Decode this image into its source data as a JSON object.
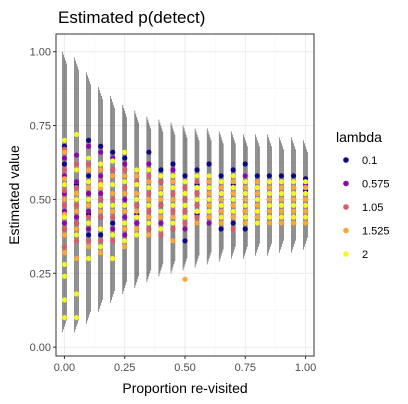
{
  "chart_data": {
    "type": "scatter",
    "title": "Estimated p(detect)",
    "xlabel": "Proportion re-visited",
    "ylabel": "Estimated value",
    "xlim": [
      -0.035,
      1.035
    ],
    "ylim": [
      -0.03,
      1.06
    ],
    "x_ticks": [
      0.0,
      0.25,
      0.5,
      0.75,
      1.0
    ],
    "x_tick_labels": [
      "0.00",
      "0.25",
      "0.50",
      "0.75",
      "1.00"
    ],
    "y_ticks": [
      0.0,
      0.25,
      0.5,
      0.75,
      1.0
    ],
    "y_tick_labels": [
      "0.00",
      "0.25",
      "0.50",
      "0.75",
      "1.00"
    ],
    "grid": true,
    "legend_placement": "right",
    "legend_title": "lambda",
    "series": [
      {
        "name": "0.1",
        "color": "#0d0887"
      },
      {
        "name": "0.575",
        "color": "#8b0aa5"
      },
      {
        "name": "1.05",
        "color": "#db5c68"
      },
      {
        "name": "1.525",
        "color": "#fca636"
      },
      {
        "name": "2",
        "color": "#f0f921"
      }
    ],
    "x": [
      0.0,
      0.05,
      0.1,
      0.15,
      0.2,
      0.25,
      0.3,
      0.35,
      0.4,
      0.45,
      0.5,
      0.55,
      0.6,
      0.65,
      0.7,
      0.75,
      0.8,
      0.85,
      0.9,
      0.95,
      1.0
    ],
    "ci_lower": [
      0.05,
      0.05,
      0.08,
      0.12,
      0.15,
      0.18,
      0.2,
      0.22,
      0.24,
      0.25,
      0.26,
      0.27,
      0.28,
      0.29,
      0.3,
      0.3,
      0.31,
      0.31,
      0.32,
      0.32,
      0.33
    ],
    "ci_upper": [
      1.0,
      0.98,
      0.93,
      0.88,
      0.85,
      0.82,
      0.8,
      0.78,
      0.77,
      0.76,
      0.75,
      0.74,
      0.74,
      0.73,
      0.73,
      0.72,
      0.72,
      0.72,
      0.71,
      0.71,
      0.7
    ],
    "points": [
      [
        [
          0.68,
          0.66,
          0.62,
          0.55,
          0.5,
          0.45,
          0.4
        ],
        [
          0.7,
          0.64,
          0.58,
          0.52,
          0.46,
          0.42
        ],
        [
          0.67,
          0.6,
          0.53,
          0.48,
          0.44,
          0.4,
          0.34
        ],
        [
          0.66,
          0.57,
          0.5,
          0.45,
          0.38,
          0.32
        ],
        [
          0.7,
          0.55,
          0.44,
          0.28,
          0.24,
          0.16,
          0.1
        ]
      ],
      [
        [
          0.6,
          0.55,
          0.5,
          0.46,
          0.42,
          0.38
        ],
        [
          0.65,
          0.56,
          0.5,
          0.44,
          0.4
        ],
        [
          0.62,
          0.54,
          0.48,
          0.42,
          0.36
        ],
        [
          0.6,
          0.52,
          0.46,
          0.4,
          0.3
        ],
        [
          0.72,
          0.6,
          0.5,
          0.38,
          0.18,
          0.1
        ]
      ],
      [
        [
          0.7,
          0.64,
          0.58,
          0.52,
          0.45,
          0.38
        ],
        [
          0.68,
          0.6,
          0.52,
          0.46,
          0.4
        ],
        [
          0.62,
          0.56,
          0.5,
          0.44,
          0.36
        ],
        [
          0.6,
          0.54,
          0.48,
          0.42,
          0.34
        ],
        [
          0.64,
          0.56,
          0.5,
          0.42,
          0.3
        ]
      ],
      [
        [
          0.68,
          0.6,
          0.55,
          0.5,
          0.44,
          0.38
        ],
        [
          0.66,
          0.58,
          0.52,
          0.46,
          0.4
        ],
        [
          0.62,
          0.56,
          0.5,
          0.44,
          0.36
        ],
        [
          0.6,
          0.54,
          0.46,
          0.4,
          0.32
        ],
        [
          0.62,
          0.55,
          0.48,
          0.4,
          0.34
        ]
      ],
      [
        [
          0.66,
          0.6,
          0.55,
          0.48,
          0.42
        ],
        [
          0.64,
          0.58,
          0.52,
          0.46,
          0.4
        ],
        [
          0.6,
          0.55,
          0.5,
          0.44,
          0.36
        ],
        [
          0.58,
          0.52,
          0.46,
          0.38,
          0.3
        ],
        [
          0.63,
          0.55,
          0.48,
          0.38,
          0.3
        ]
      ],
      [
        [
          0.64,
          0.58,
          0.52,
          0.46,
          0.4
        ],
        [
          0.62,
          0.56,
          0.5,
          0.44,
          0.38
        ],
        [
          0.6,
          0.54,
          0.48,
          0.42,
          0.36
        ],
        [
          0.58,
          0.52,
          0.46,
          0.4,
          0.34
        ],
        [
          0.66,
          0.56,
          0.48,
          0.42,
          0.36
        ]
      ],
      [
        [
          0.6,
          0.55,
          0.5,
          0.45,
          0.42
        ],
        [
          0.58,
          0.52,
          0.48,
          0.42
        ],
        [
          0.56,
          0.52,
          0.48,
          0.44,
          0.38
        ],
        [
          0.58,
          0.52,
          0.46,
          0.4
        ],
        [
          0.6,
          0.55,
          0.5,
          0.44,
          0.38
        ]
      ],
      [
        [
          0.66,
          0.6,
          0.54,
          0.48,
          0.42
        ],
        [
          0.62,
          0.56,
          0.5,
          0.44
        ],
        [
          0.58,
          0.52,
          0.46,
          0.4
        ],
        [
          0.56,
          0.5,
          0.44,
          0.38
        ],
        [
          0.6,
          0.54,
          0.48,
          0.42
        ]
      ],
      [
        [
          0.6,
          0.56,
          0.52,
          0.46
        ],
        [
          0.58,
          0.54,
          0.48,
          0.42
        ],
        [
          0.56,
          0.52,
          0.48,
          0.44,
          0.38
        ],
        [
          0.58,
          0.54,
          0.5,
          0.44
        ],
        [
          0.58,
          0.52,
          0.46,
          0.4
        ]
      ],
      [
        [
          0.62,
          0.56,
          0.5,
          0.44,
          0.4
        ],
        [
          0.6,
          0.54,
          0.48,
          0.42
        ],
        [
          0.58,
          0.52,
          0.46,
          0.4
        ],
        [
          0.56,
          0.5,
          0.44,
          0.36
        ],
        [
          0.58,
          0.54,
          0.48,
          0.42
        ]
      ],
      [
        [
          0.58,
          0.52,
          0.48,
          0.44,
          0.36
        ],
        [
          0.56,
          0.5,
          0.46,
          0.4
        ],
        [
          0.54,
          0.5,
          0.46,
          0.42
        ],
        [
          0.56,
          0.52,
          0.48,
          0.44,
          0.23
        ],
        [
          0.56,
          0.52,
          0.48,
          0.44
        ]
      ],
      [
        [
          0.6,
          0.55,
          0.5,
          0.45
        ],
        [
          0.58,
          0.52,
          0.48,
          0.42
        ],
        [
          0.56,
          0.52,
          0.48,
          0.44
        ],
        [
          0.54,
          0.5,
          0.46,
          0.42
        ],
        [
          0.58,
          0.54,
          0.5,
          0.46
        ]
      ],
      [
        [
          0.62,
          0.56,
          0.5,
          0.44
        ],
        [
          0.58,
          0.54,
          0.48,
          0.42
        ],
        [
          0.56,
          0.52,
          0.48,
          0.44
        ],
        [
          0.56,
          0.52,
          0.48,
          0.44
        ],
        [
          0.58,
          0.54,
          0.5,
          0.46
        ]
      ],
      [
        [
          0.58,
          0.54,
          0.5,
          0.46,
          0.4
        ],
        [
          0.56,
          0.52,
          0.48,
          0.44
        ],
        [
          0.56,
          0.52,
          0.48,
          0.44
        ],
        [
          0.54,
          0.5,
          0.46,
          0.42
        ],
        [
          0.56,
          0.52,
          0.48,
          0.44
        ]
      ],
      [
        [
          0.6,
          0.55,
          0.5,
          0.46,
          0.42
        ],
        [
          0.58,
          0.54,
          0.5,
          0.46
        ],
        [
          0.56,
          0.52,
          0.48,
          0.44,
          0.4
        ],
        [
          0.56,
          0.52,
          0.48,
          0.44
        ],
        [
          0.58,
          0.54,
          0.5,
          0.46
        ]
      ],
      [
        [
          0.62,
          0.56,
          0.52,
          0.48,
          0.4
        ],
        [
          0.58,
          0.54,
          0.5,
          0.46
        ],
        [
          0.56,
          0.52,
          0.48,
          0.44
        ],
        [
          0.54,
          0.5,
          0.46,
          0.42
        ],
        [
          0.56,
          0.52,
          0.48,
          0.44
        ]
      ],
      [
        [
          0.58,
          0.54,
          0.5,
          0.46,
          0.42
        ],
        [
          0.56,
          0.52,
          0.48,
          0.44
        ],
        [
          0.54,
          0.5,
          0.46,
          0.42
        ],
        [
          0.56,
          0.52,
          0.48,
          0.44
        ],
        [
          0.54,
          0.5,
          0.46,
          0.42
        ]
      ],
      [
        [
          0.58,
          0.54,
          0.5,
          0.46,
          0.42
        ],
        [
          0.56,
          0.52,
          0.48,
          0.44
        ],
        [
          0.56,
          0.52,
          0.48,
          0.44
        ],
        [
          0.54,
          0.5,
          0.46,
          0.42
        ],
        [
          0.56,
          0.52,
          0.48,
          0.44
        ]
      ],
      [
        [
          0.58,
          0.54,
          0.5,
          0.46,
          0.42
        ],
        [
          0.56,
          0.52,
          0.48,
          0.44
        ],
        [
          0.54,
          0.5,
          0.46,
          0.42
        ],
        [
          0.54,
          0.5,
          0.46,
          0.42
        ],
        [
          0.56,
          0.52,
          0.48,
          0.44
        ]
      ],
      [
        [
          0.58,
          0.54,
          0.5,
          0.46,
          0.42
        ],
        [
          0.56,
          0.52,
          0.48,
          0.44
        ],
        [
          0.54,
          0.5,
          0.46,
          0.42
        ],
        [
          0.54,
          0.5,
          0.46,
          0.42
        ],
        [
          0.56,
          0.52,
          0.48,
          0.44
        ]
      ],
      [
        [
          0.57,
          0.53,
          0.5,
          0.46,
          0.42
        ],
        [
          0.55,
          0.52,
          0.48,
          0.44
        ],
        [
          0.54,
          0.5,
          0.46,
          0.42
        ],
        [
          0.54,
          0.5,
          0.46,
          0.42
        ],
        [
          0.56,
          0.52,
          0.48,
          0.44
        ]
      ]
    ]
  }
}
